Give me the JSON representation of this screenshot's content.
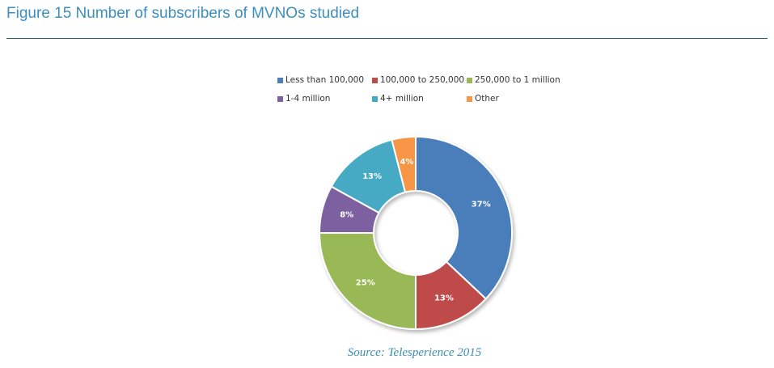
{
  "header": {
    "title": "Figure 15 Number of subscribers of MVNOs studied"
  },
  "source": "Source: Telesperience 2015",
  "chart_data": {
    "type": "pie",
    "donut": true,
    "legend_position": "top",
    "categories": [
      "Less than 100,000",
      "100,000 to 250,000",
      "250,000 to 1 million",
      "1-4 million",
      "4+ million",
      "Other"
    ],
    "values": [
      37,
      13,
      25,
      8,
      13,
      4
    ],
    "labels": [
      "37%",
      "13%",
      "25%",
      "8%",
      "13%",
      "4%"
    ],
    "colors": [
      "#4a7ebb",
      "#be4b48",
      "#98b954",
      "#7d60a0",
      "#46aac5",
      "#f79646"
    ]
  }
}
